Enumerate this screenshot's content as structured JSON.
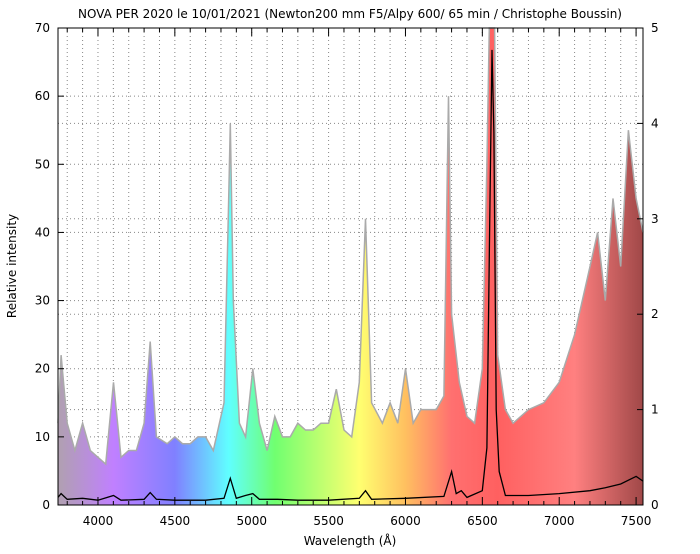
{
  "chart_data": {
    "type": "line",
    "title": "NOVA PER 2020 le 10/01/2021 (Newton200 mm F5/Alpy 600/ 65 min / Christophe Boussin)",
    "xlabel": "Wavelength (Å)",
    "ylabel": "Relative intensity",
    "xlim": [
      3740,
      7545
    ],
    "ylim": [
      0,
      70
    ],
    "y2lim": [
      0,
      5
    ],
    "x_ticks": [
      4000,
      4500,
      5000,
      5500,
      6000,
      6500,
      7000,
      7500
    ],
    "y_ticks": [
      0,
      10,
      20,
      30,
      40,
      50,
      60,
      70
    ],
    "y2_ticks": [
      0,
      1,
      2,
      3,
      4,
      5
    ],
    "grid": true,
    "fill_gradient": [
      {
        "wl": 3740,
        "color": "#b0a0b0"
      },
      {
        "wl": 4100,
        "color": "#c080ff"
      },
      {
        "wl": 4500,
        "color": "#8080ff"
      },
      {
        "wl": 4850,
        "color": "#60ffff"
      },
      {
        "wl": 5150,
        "color": "#70ff70"
      },
      {
        "wl": 5700,
        "color": "#ffff70"
      },
      {
        "wl": 6000,
        "color": "#ffc060"
      },
      {
        "wl": 6300,
        "color": "#ff7070"
      },
      {
        "wl": 6600,
        "color": "#ff6060"
      },
      {
        "wl": 7100,
        "color": "#ff8080"
      },
      {
        "wl": 7545,
        "color": "#a04848"
      }
    ],
    "series": [
      {
        "axis": "left",
        "color": "#aaaaaa",
        "x": [
          3740,
          3760,
          3800,
          3850,
          3900,
          3950,
          4000,
          4050,
          4101,
          4150,
          4200,
          4250,
          4300,
          4340,
          4380,
          4450,
          4500,
          4550,
          4600,
          4650,
          4700,
          4750,
          4820,
          4850,
          4861,
          4880,
          4920,
          4960,
          5007,
          5050,
          5100,
          5150,
          5200,
          5250,
          5300,
          5350,
          5400,
          5450,
          5500,
          5550,
          5600,
          5650,
          5700,
          5740,
          5780,
          5850,
          5900,
          5950,
          6000,
          6050,
          6100,
          6150,
          6200,
          6250,
          6280,
          6300,
          6350,
          6400,
          6450,
          6500,
          6530,
          6545,
          6580,
          6600,
          6650,
          6700,
          6800,
          6900,
          7000,
          7100,
          7150,
          7200,
          7250,
          7300,
          7350,
          7400,
          7450,
          7500,
          7545
        ],
        "y": [
          12,
          22,
          12,
          8,
          12,
          8,
          7,
          6,
          18,
          7,
          8,
          8,
          12,
          24,
          10,
          9,
          10,
          9,
          9,
          10,
          10,
          8,
          15,
          45,
          56,
          30,
          12,
          10,
          20,
          12,
          8,
          13,
          10,
          10,
          12,
          11,
          11,
          12,
          12,
          17,
          11,
          10,
          18,
          42,
          15,
          12,
          15,
          12,
          20,
          12,
          14,
          14,
          14,
          16,
          60,
          28,
          18,
          13,
          12,
          20,
          50,
          70,
          70,
          22,
          14,
          12,
          14,
          15,
          18,
          25,
          30,
          35,
          40,
          30,
          45,
          35,
          55,
          45,
          40
        ]
      },
      {
        "axis": "right",
        "color": "#000000",
        "x": [
          3740,
          3760,
          3800,
          3900,
          4000,
          4101,
          4150,
          4300,
          4340,
          4380,
          4500,
          4700,
          4820,
          4861,
          4900,
          4959,
          5007,
          5050,
          5169,
          5300,
          5500,
          5700,
          5740,
          5780,
          6000,
          6250,
          6300,
          6330,
          6363,
          6400,
          6500,
          6530,
          6550,
          6563,
          6575,
          6590,
          6610,
          6650,
          6800,
          7000,
          7200,
          7300,
          7400,
          7500,
          7545
        ],
        "y": [
          0.08,
          0.12,
          0.06,
          0.07,
          0.05,
          0.1,
          0.05,
          0.06,
          0.13,
          0.06,
          0.05,
          0.05,
          0.07,
          0.28,
          0.07,
          0.1,
          0.12,
          0.06,
          0.06,
          0.05,
          0.05,
          0.07,
          0.15,
          0.06,
          0.07,
          0.09,
          0.35,
          0.12,
          0.15,
          0.08,
          0.15,
          0.6,
          3.2,
          4.77,
          3.9,
          1.0,
          0.35,
          0.1,
          0.1,
          0.12,
          0.15,
          0.18,
          0.22,
          0.3,
          0.25
        ]
      }
    ]
  }
}
